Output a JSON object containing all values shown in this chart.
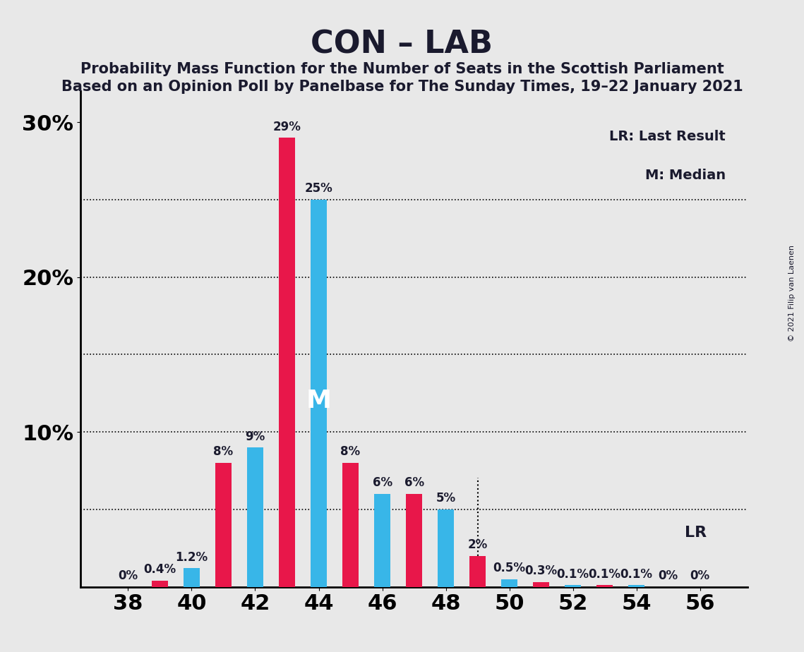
{
  "title": "CON – LAB",
  "subtitle1": "Probability Mass Function for the Number of Seats in the Scottish Parliament",
  "subtitle2": "Based on an Opinion Poll by Panelbase for The Sunday Times, 19–22 January 2021",
  "copyright": "© 2021 Filip van Laenen",
  "legend_lr": "LR: Last Result",
  "legend_m": "M: Median",
  "lr_label": "LR",
  "median_label": "M",
  "background_color": "#e8e8e8",
  "bar_red": "#e8174a",
  "bar_blue": "#38b6e8",
  "seats": [
    38,
    39,
    40,
    41,
    42,
    43,
    44,
    45,
    46,
    47,
    48,
    49,
    50,
    51,
    52,
    53,
    54,
    55,
    56
  ],
  "con_values": [
    0.0,
    0.4,
    0.0,
    8.0,
    0.0,
    29.0,
    0.0,
    8.0,
    0.0,
    6.0,
    0.0,
    2.0,
    0.0,
    0.3,
    0.0,
    0.1,
    0.0,
    0.0,
    0.0
  ],
  "lab_values": [
    0.0,
    0.0,
    1.2,
    0.0,
    9.0,
    0.0,
    25.0,
    0.0,
    6.0,
    0.0,
    5.0,
    0.0,
    0.5,
    0.0,
    0.1,
    0.0,
    0.1,
    0.0,
    0.0
  ],
  "con_labels": [
    "",
    "0.4%",
    "",
    "8%",
    "",
    "29%",
    "",
    "8%",
    "",
    "6%",
    "",
    "2%",
    "",
    "0.3%",
    "",
    "0.1%",
    "",
    "0%",
    "0%"
  ],
  "lab_labels": [
    "0%",
    "",
    "1.2%",
    "",
    "9%",
    "",
    "25%",
    "",
    "6%",
    "",
    "5%",
    "",
    "0.5%",
    "",
    "0.1%",
    "",
    "0.1%",
    "",
    ""
  ],
  "ylim": [
    0,
    32
  ],
  "yticks": [
    0,
    5,
    10,
    15,
    20,
    25,
    30
  ],
  "ytick_labels": [
    "",
    "",
    "10%",
    "",
    "20%",
    "",
    "30%"
  ],
  "grid_lines": [
    5,
    10,
    15,
    20,
    25
  ],
  "lr_seat": 49,
  "median_seat": 44,
  "xlabel_ticks": [
    38,
    40,
    42,
    44,
    46,
    48,
    50,
    52,
    54,
    56
  ],
  "title_fontsize": 32,
  "subtitle_fontsize": 15,
  "axis_fontsize": 22
}
